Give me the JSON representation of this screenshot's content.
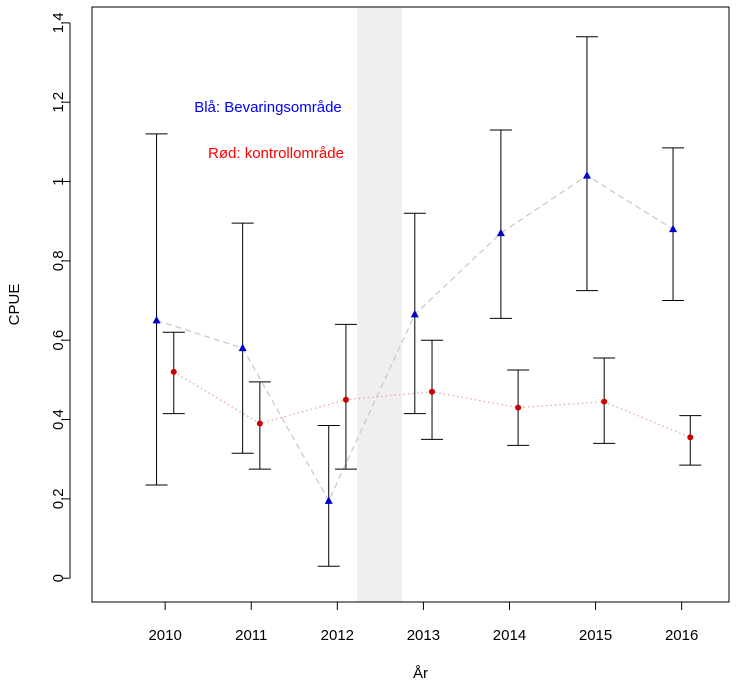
{
  "chart_data": {
    "type": "scatter",
    "title": "",
    "xlabel": "År",
    "ylabel": "CPUE",
    "xlim": [
      2009.15,
      2016.55
    ],
    "ylim": [
      -0.06,
      1.44
    ],
    "x_ticks": [
      "2010",
      "2011",
      "2012",
      "2013",
      "2014",
      "2015",
      "2016"
    ],
    "y_ticks": [
      "0",
      "0.2",
      "0.4",
      "0.6",
      "0.8",
      "1",
      "1.2",
      "1.4"
    ],
    "shaded_band": {
      "x_start": 2012.23,
      "x_end": 2012.75,
      "color": "#efefef"
    },
    "annotations": [
      {
        "text": "Blå: Bevaringsområde",
        "color": "#0000ff"
      },
      {
        "text": "Rød: kontrollområde",
        "color": "#ff0000"
      }
    ],
    "series": [
      {
        "color": "#0000cc",
        "marker": "triangle",
        "line_style": "dashed",
        "line_color": "#c8c8c8",
        "x": [
          2009.9,
          2010.9,
          2011.9,
          2012.9,
          2013.9,
          2014.9,
          2015.9
        ],
        "values": [
          0.65,
          0.58,
          0.195,
          0.665,
          0.87,
          1.015,
          0.88
        ],
        "lower": [
          0.235,
          0.315,
          0.03,
          0.415,
          0.655,
          0.725,
          0.7
        ],
        "upper": [
          1.12,
          0.895,
          0.385,
          0.92,
          1.13,
          1.365,
          1.085
        ]
      },
      {
        "color": "#cc0000",
        "marker": "dot",
        "line_style": "dotted",
        "line_color": "#e8a0a0",
        "x": [
          2010.1,
          2011.1,
          2012.1,
          2013.1,
          2014.1,
          2015.1,
          2016.1
        ],
        "values": [
          0.52,
          0.39,
          0.45,
          0.47,
          0.43,
          0.445,
          0.355
        ],
        "lower": [
          0.415,
          0.275,
          0.275,
          0.35,
          0.335,
          0.34,
          0.285
        ],
        "upper": [
          0.62,
          0.495,
          0.64,
          0.6,
          0.525,
          0.555,
          0.41
        ]
      }
    ],
    "grid": false,
    "legend": "none"
  }
}
